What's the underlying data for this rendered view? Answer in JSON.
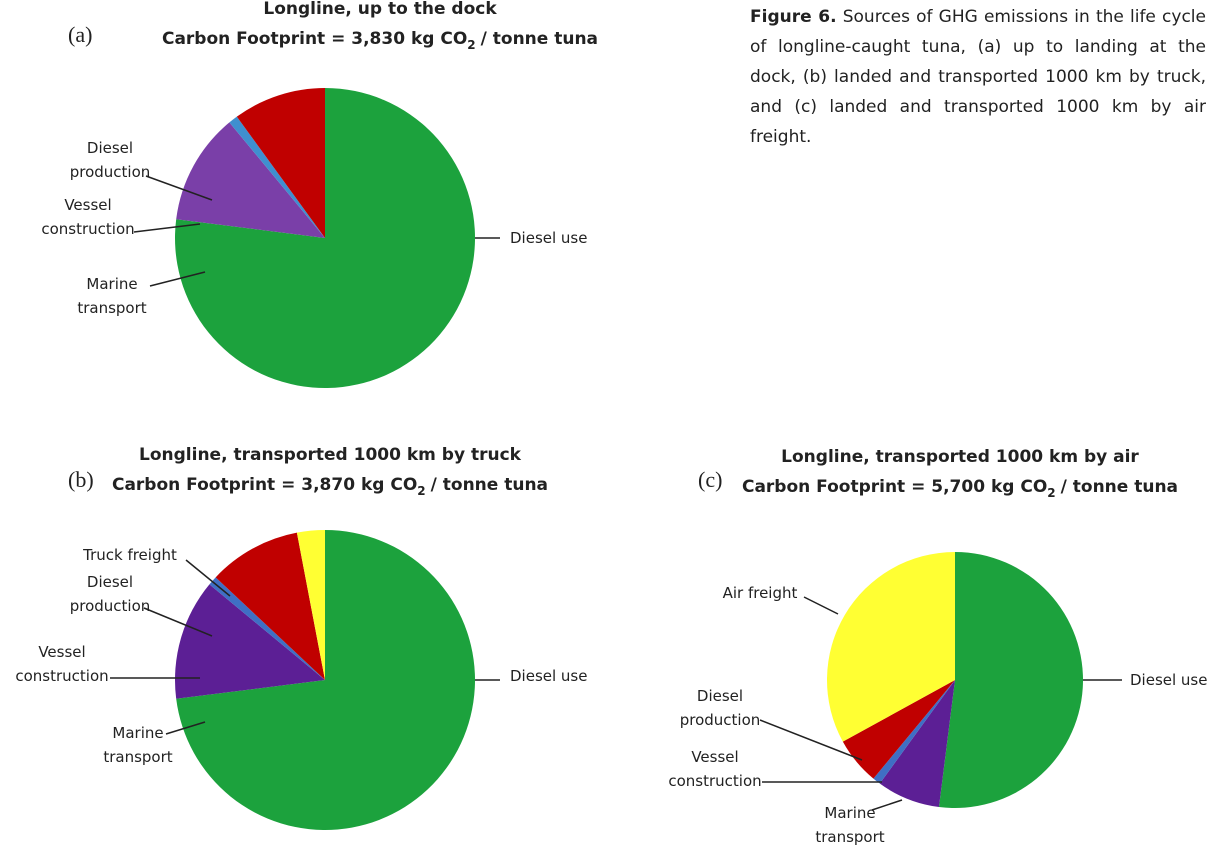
{
  "caption": {
    "label": "Figure 6.",
    "text": "Sources of GHG emissions in the life cycle of longline-caught tuna, (a) up to landing at the dock, (b) landed and transported 1000 km by truck, and (c) landed and transported 1000 km by air freight."
  },
  "chart_data": [
    {
      "type": "pie",
      "panel": "(a)",
      "title": "Longline, up to the dock",
      "subtitle": "Carbon Footprint = 3,830 kg CO",
      "subtitle_sub": "2",
      "subtitle_end": "/ tonne tuna",
      "categories": [
        "Diesel use",
        "Marine transport",
        "Vessel construction",
        "Diesel production"
      ],
      "values": [
        77,
        12,
        1,
        10
      ],
      "colors": [
        "#1ca23d",
        "#7a3fa8",
        "#3f8fcf",
        "#c00000"
      ]
    },
    {
      "type": "pie",
      "panel": "(b)",
      "title": "Longline, transported 1000 km by truck",
      "subtitle": "Carbon Footprint = 3,870 kg CO",
      "subtitle_sub": "2",
      "subtitle_end": "/ tonne tuna",
      "categories": [
        "Diesel use",
        "Marine transport",
        "Vessel construction",
        "Diesel production",
        "Truck freight"
      ],
      "values": [
        73,
        13,
        1,
        10,
        3
      ],
      "colors": [
        "#1ca23d",
        "#5c1f95",
        "#3f6fc4",
        "#c00000",
        "#ffff33"
      ]
    },
    {
      "type": "pie",
      "panel": "(c)",
      "title": "Longline, transported 1000 km by air",
      "subtitle": "Carbon Footprint = 5,700 kg CO",
      "subtitle_sub": "2",
      "subtitle_end": "/ tonne tuna",
      "categories": [
        "Diesel use",
        "Marine transport",
        "Vessel construction",
        "Diesel production",
        "Air freight"
      ],
      "values": [
        52,
        8,
        1,
        6,
        33
      ],
      "colors": [
        "#1ca23d",
        "#5c1f95",
        "#3f6fc4",
        "#c00000",
        "#ffff33"
      ]
    }
  ]
}
